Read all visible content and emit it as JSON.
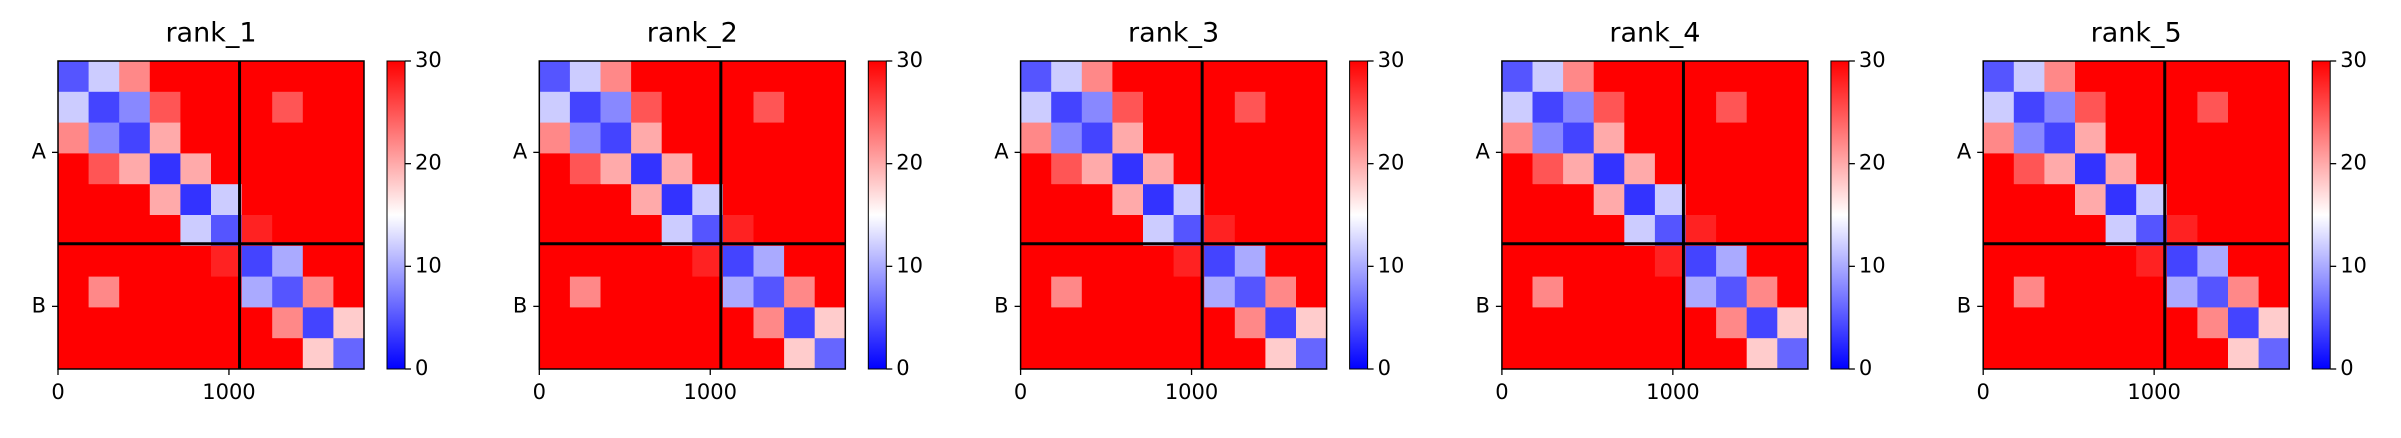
{
  "chart_data": [
    {
      "type": "heatmap",
      "title": "rank_1",
      "colormap": "bwr",
      "bins": [
        0,
        179,
        358,
        537,
        716,
        895,
        1074,
        1253,
        1432,
        1611,
        1790
      ],
      "xlim": [
        0,
        1790
      ],
      "ylim": [
        1790,
        0
      ],
      "xticks": [
        0,
        1000
      ],
      "yticks": [
        {
          "value": 531,
          "label": "A"
        },
        {
          "value": 1426,
          "label": "B"
        }
      ],
      "chain_breaks": [
        1062
      ],
      "clim": [
        0,
        30
      ],
      "cticks": [
        0,
        10,
        20,
        30
      ],
      "z": [
        [
          5,
          12,
          22,
          30,
          30,
          30,
          30,
          30,
          30,
          30
        ],
        [
          12,
          4,
          8,
          25,
          30,
          30,
          30,
          25,
          30,
          30
        ],
        [
          22,
          8,
          4,
          20,
          30,
          30,
          30,
          30,
          30,
          30
        ],
        [
          30,
          25,
          20,
          3,
          20,
          30,
          30,
          30,
          30,
          30
        ],
        [
          30,
          30,
          30,
          20,
          3,
          12,
          30,
          30,
          30,
          30
        ],
        [
          30,
          30,
          30,
          30,
          12,
          5,
          28,
          30,
          30,
          30
        ],
        [
          30,
          30,
          30,
          30,
          30,
          28,
          4,
          10,
          30,
          30
        ],
        [
          30,
          22,
          30,
          30,
          30,
          30,
          10,
          5,
          22,
          30
        ],
        [
          30,
          30,
          30,
          30,
          30,
          30,
          30,
          22,
          4,
          18
        ],
        [
          30,
          30,
          30,
          30,
          30,
          30,
          30,
          30,
          18,
          6
        ]
      ]
    },
    {
      "type": "heatmap",
      "title": "rank_2",
      "colormap": "bwr",
      "bins": [
        0,
        179,
        358,
        537,
        716,
        895,
        1074,
        1253,
        1432,
        1611,
        1790
      ],
      "xlim": [
        0,
        1790
      ],
      "ylim": [
        1790,
        0
      ],
      "xticks": [
        0,
        1000
      ],
      "yticks": [
        {
          "value": 531,
          "label": "A"
        },
        {
          "value": 1426,
          "label": "B"
        }
      ],
      "chain_breaks": [
        1062
      ],
      "clim": [
        0,
        30
      ],
      "cticks": [
        0,
        10,
        20,
        30
      ],
      "z": [
        [
          5,
          12,
          22,
          30,
          30,
          30,
          30,
          30,
          30,
          30
        ],
        [
          12,
          4,
          8,
          25,
          30,
          30,
          30,
          25,
          30,
          30
        ],
        [
          22,
          8,
          4,
          20,
          30,
          30,
          30,
          30,
          30,
          30
        ],
        [
          30,
          25,
          20,
          3,
          20,
          30,
          30,
          30,
          30,
          30
        ],
        [
          30,
          30,
          30,
          20,
          3,
          12,
          30,
          30,
          30,
          30
        ],
        [
          30,
          30,
          30,
          30,
          12,
          5,
          28,
          30,
          30,
          30
        ],
        [
          30,
          30,
          30,
          30,
          30,
          28,
          4,
          10,
          30,
          30
        ],
        [
          30,
          22,
          30,
          30,
          30,
          30,
          10,
          5,
          22,
          30
        ],
        [
          30,
          30,
          30,
          30,
          30,
          30,
          30,
          22,
          4,
          18
        ],
        [
          30,
          30,
          30,
          30,
          30,
          30,
          30,
          30,
          18,
          6
        ]
      ]
    },
    {
      "type": "heatmap",
      "title": "rank_3",
      "colormap": "bwr",
      "bins": [
        0,
        179,
        358,
        537,
        716,
        895,
        1074,
        1253,
        1432,
        1611,
        1790
      ],
      "xlim": [
        0,
        1790
      ],
      "ylim": [
        1790,
        0
      ],
      "xticks": [
        0,
        1000
      ],
      "yticks": [
        {
          "value": 531,
          "label": "A"
        },
        {
          "value": 1426,
          "label": "B"
        }
      ],
      "chain_breaks": [
        1062
      ],
      "clim": [
        0,
        30
      ],
      "cticks": [
        0,
        10,
        20,
        30
      ],
      "z": [
        [
          5,
          12,
          22,
          30,
          30,
          30,
          30,
          30,
          30,
          30
        ],
        [
          12,
          4,
          8,
          25,
          30,
          30,
          30,
          25,
          30,
          30
        ],
        [
          22,
          8,
          4,
          20,
          30,
          30,
          30,
          30,
          30,
          30
        ],
        [
          30,
          25,
          20,
          3,
          20,
          30,
          30,
          30,
          30,
          30
        ],
        [
          30,
          30,
          30,
          20,
          3,
          12,
          30,
          30,
          30,
          30
        ],
        [
          30,
          30,
          30,
          30,
          12,
          5,
          28,
          30,
          30,
          30
        ],
        [
          30,
          30,
          30,
          30,
          30,
          28,
          4,
          10,
          30,
          30
        ],
        [
          30,
          22,
          30,
          30,
          30,
          30,
          10,
          5,
          22,
          30
        ],
        [
          30,
          30,
          30,
          30,
          30,
          30,
          30,
          22,
          4,
          18
        ],
        [
          30,
          30,
          30,
          30,
          30,
          30,
          30,
          30,
          18,
          6
        ]
      ]
    },
    {
      "type": "heatmap",
      "title": "rank_4",
      "colormap": "bwr",
      "bins": [
        0,
        179,
        358,
        537,
        716,
        895,
        1074,
        1253,
        1432,
        1611,
        1790
      ],
      "xlim": [
        0,
        1790
      ],
      "ylim": [
        1790,
        0
      ],
      "xticks": [
        0,
        1000
      ],
      "yticks": [
        {
          "value": 531,
          "label": "A"
        },
        {
          "value": 1426,
          "label": "B"
        }
      ],
      "chain_breaks": [
        1062
      ],
      "clim": [
        0,
        30
      ],
      "cticks": [
        0,
        10,
        20,
        30
      ],
      "z": [
        [
          5,
          12,
          22,
          30,
          30,
          30,
          30,
          30,
          30,
          30
        ],
        [
          12,
          4,
          8,
          25,
          30,
          30,
          30,
          25,
          30,
          30
        ],
        [
          22,
          8,
          4,
          20,
          30,
          30,
          30,
          30,
          30,
          30
        ],
        [
          30,
          25,
          20,
          3,
          20,
          30,
          30,
          30,
          30,
          30
        ],
        [
          30,
          30,
          30,
          20,
          3,
          12,
          30,
          30,
          30,
          30
        ],
        [
          30,
          30,
          30,
          30,
          12,
          5,
          28,
          30,
          30,
          30
        ],
        [
          30,
          30,
          30,
          30,
          30,
          28,
          4,
          10,
          30,
          30
        ],
        [
          30,
          22,
          30,
          30,
          30,
          30,
          10,
          5,
          22,
          30
        ],
        [
          30,
          30,
          30,
          30,
          30,
          30,
          30,
          22,
          4,
          18
        ],
        [
          30,
          30,
          30,
          30,
          30,
          30,
          30,
          30,
          18,
          6
        ]
      ]
    },
    {
      "type": "heatmap",
      "title": "rank_5",
      "colormap": "bwr",
      "bins": [
        0,
        179,
        358,
        537,
        716,
        895,
        1074,
        1253,
        1432,
        1611,
        1790
      ],
      "xlim": [
        0,
        1790
      ],
      "ylim": [
        1790,
        0
      ],
      "xticks": [
        0,
        1000
      ],
      "yticks": [
        {
          "value": 531,
          "label": "A"
        },
        {
          "value": 1426,
          "label": "B"
        }
      ],
      "chain_breaks": [
        1062
      ],
      "clim": [
        0,
        30
      ],
      "cticks": [
        0,
        10,
        20,
        30
      ],
      "z": [
        [
          5,
          12,
          22,
          30,
          30,
          30,
          30,
          30,
          30,
          30
        ],
        [
          12,
          4,
          8,
          25,
          30,
          30,
          30,
          25,
          30,
          30
        ],
        [
          22,
          8,
          4,
          20,
          30,
          30,
          30,
          30,
          30,
          30
        ],
        [
          30,
          25,
          20,
          3,
          20,
          30,
          30,
          30,
          30,
          30
        ],
        [
          30,
          30,
          30,
          20,
          3,
          12,
          30,
          30,
          30,
          30
        ],
        [
          30,
          30,
          30,
          30,
          12,
          5,
          28,
          30,
          30,
          30
        ],
        [
          30,
          30,
          30,
          30,
          30,
          28,
          4,
          10,
          30,
          30
        ],
        [
          30,
          22,
          30,
          30,
          30,
          30,
          10,
          5,
          22,
          30
        ],
        [
          30,
          30,
          30,
          30,
          30,
          30,
          30,
          22,
          4,
          18
        ],
        [
          30,
          30,
          30,
          30,
          30,
          30,
          30,
          30,
          18,
          6
        ]
      ]
    }
  ]
}
